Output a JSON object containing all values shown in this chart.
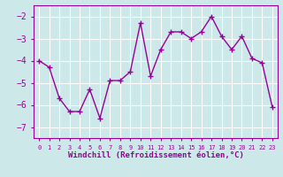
{
  "x": [
    0,
    1,
    2,
    3,
    4,
    5,
    6,
    7,
    8,
    9,
    10,
    11,
    12,
    13,
    14,
    15,
    16,
    17,
    18,
    19,
    20,
    21,
    22,
    23
  ],
  "y": [
    -4.0,
    -4.3,
    -5.7,
    -6.3,
    -6.3,
    -5.3,
    -6.6,
    -4.9,
    -4.9,
    -4.5,
    -2.3,
    -4.7,
    -3.5,
    -2.7,
    -2.7,
    -3.0,
    -2.7,
    -2.0,
    -2.9,
    -3.5,
    -2.9,
    -3.9,
    -4.1,
    -6.1
  ],
  "line_color": "#990099",
  "marker": "+",
  "bg_color": "#cce8e8",
  "grid_color": "#ffffff",
  "xlabel": "Windchill (Refroidissement éolien,°C)",
  "xlabel_color": "#990099",
  "tick_color": "#990099",
  "ylim": [
    -7.5,
    -1.5
  ],
  "xlim": [
    -0.5,
    23.5
  ],
  "yticks": [
    -7,
    -6,
    -5,
    -4,
    -3,
    -2
  ],
  "xtick_labels": [
    "0",
    "1",
    "2",
    "3",
    "4",
    "5",
    "6",
    "7",
    "8",
    "9",
    "10",
    "11",
    "12",
    "13",
    "14",
    "15",
    "16",
    "17",
    "18",
    "19",
    "20",
    "21",
    "22",
    "23"
  ],
  "linewidth": 1.0,
  "markersize": 4,
  "markeredgewidth": 1.0
}
